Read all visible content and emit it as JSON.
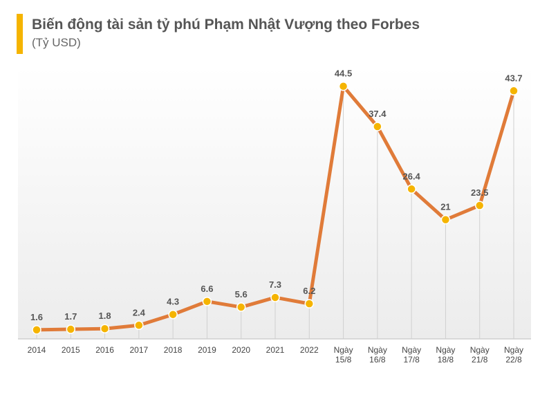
{
  "header": {
    "title": "Biến động tài sản tỷ phú Phạm Nhật Vượng theo Forbes",
    "subtitle": "(Tỷ USD)"
  },
  "colors": {
    "accent_bar": "#f5b400",
    "line": "#e07b39",
    "marker": "#f5b400",
    "marker_stroke": "#ffffff",
    "drop_line": "#d0d0d0",
    "value_label": "#555555",
    "tick_label": "#444444",
    "background_gradient": [
      "#ffffff",
      "#ececec"
    ]
  },
  "chart_data": {
    "type": "line",
    "title": "Biến động tài sản tỷ phú Phạm Nhật Vượng theo Forbes",
    "subtitle": "(Tỷ USD)",
    "xlabel": "",
    "ylabel": "",
    "ylim": [
      0,
      48
    ],
    "grid": false,
    "legend": "none",
    "categories": [
      "2014",
      "2015",
      "2016",
      "2017",
      "2018",
      "2019",
      "2020",
      "2021",
      "2022",
      "Ngày 15/8",
      "Ngày 16/8",
      "Ngày 17/8",
      "Ngày 18/8",
      "Ngày 21/8",
      "Ngày 22/8"
    ],
    "category_lines": [
      [
        "2014"
      ],
      [
        "2015"
      ],
      [
        "2016"
      ],
      [
        "2017"
      ],
      [
        "2018"
      ],
      [
        "2019"
      ],
      [
        "2020"
      ],
      [
        "2021"
      ],
      [
        "2022"
      ],
      [
        "Ngày",
        "15/8"
      ],
      [
        "Ngày",
        "16/8"
      ],
      [
        "Ngày",
        "17/8"
      ],
      [
        "Ngày",
        "18/8"
      ],
      [
        "Ngày",
        "21/8"
      ],
      [
        "Ngày",
        "22/8"
      ]
    ],
    "values": [
      1.6,
      1.7,
      1.8,
      2.4,
      4.3,
      6.6,
      5.6,
      7.3,
      6.2,
      44.5,
      37.4,
      26.4,
      21,
      23.5,
      43.7
    ],
    "value_labels": [
      "1.6",
      "1.7",
      "1.8",
      "2.4",
      "4.3",
      "6.6",
      "5.6",
      "7.3",
      "6.2",
      "44.5",
      "37.4",
      "26.4",
      "21",
      "23.5",
      "43.7"
    ]
  }
}
